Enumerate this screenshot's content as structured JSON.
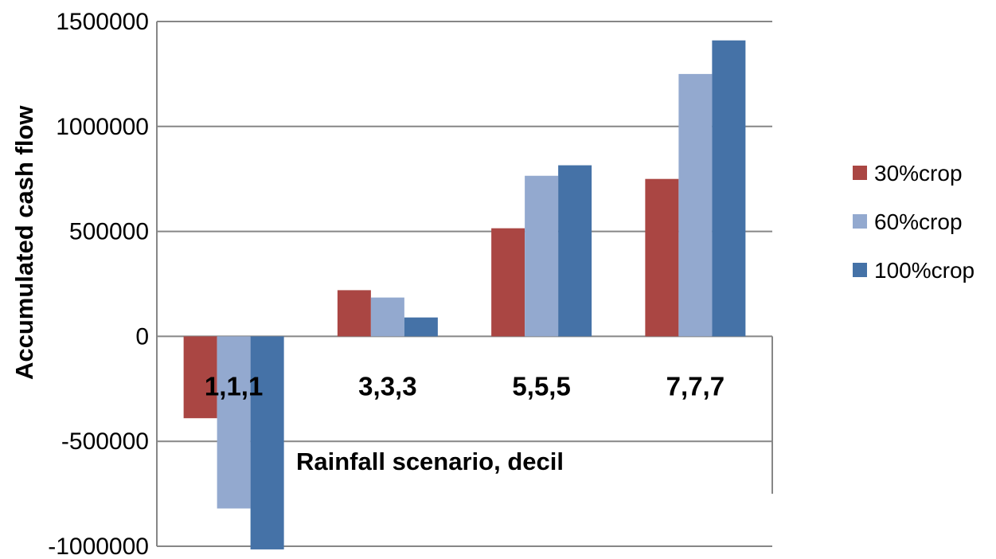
{
  "chart_data": {
    "type": "bar",
    "xlabel": "Rainfall scenario, decil",
    "ylabel": "Accumulated cash flow",
    "categories": [
      "1,1,1",
      "3,3,3",
      "5,5,5",
      "7,7,7"
    ],
    "series": [
      {
        "name": "30%crop",
        "color": "#AA4643",
        "values": [
          -390000,
          220000,
          515000,
          750000
        ]
      },
      {
        "name": "60%crop",
        "color": "#93A9CF",
        "values": [
          -820000,
          185000,
          765000,
          1250000
        ]
      },
      {
        "name": "100%crop",
        "color": "#4572A7",
        "values": [
          -1015000,
          90000,
          815000,
          1410000
        ]
      }
    ],
    "ylim": [
      -1000000,
      1500000
    ],
    "yticks": [
      -1000000,
      -500000,
      0,
      500000,
      1000000,
      1500000
    ],
    "ytick_labels": [
      "-1000000",
      "-500000",
      "0",
      "500000",
      "1000000",
      "1500000"
    ],
    "grid": true,
    "legend_position": "right"
  }
}
